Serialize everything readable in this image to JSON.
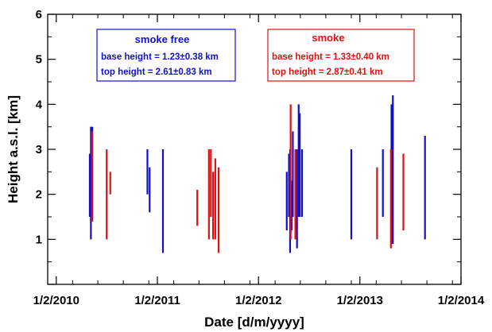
{
  "chart_data": {
    "type": "range-bar",
    "xlabel": "Date [d/m/yyyy]",
    "ylabel": "Height a.s.l. [km]",
    "xlim": [
      "2010-01-01",
      "2014-02-01"
    ],
    "ylim": [
      0,
      6
    ],
    "x_tick_labels": [
      "1/2/2010",
      "1/2/2011",
      "1/2/2012",
      "1/2/2013",
      "1/2/2014"
    ],
    "x_tick_dates": [
      "2010-02-01",
      "2011-02-01",
      "2012-02-01",
      "2013-02-01",
      "2014-02-01"
    ],
    "y_tick_labels": [
      "1",
      "2",
      "3",
      "4",
      "5",
      "6"
    ],
    "y_ticks": [
      1,
      2,
      3,
      4,
      5,
      6
    ],
    "colors": {
      "smoke_free": "#1010cc",
      "smoke": "#dd1111"
    },
    "annotations": [
      {
        "series": "smoke_free",
        "title": "smoke free",
        "lines": [
          "base height = 1.23±0.38 km",
          "top height = 2.61±0.83 km"
        ]
      },
      {
        "series": "smoke",
        "title": "smoke",
        "lines": [
          "base height = 1.33±0.40 km",
          "top height = 2.87±0.41 km"
        ]
      }
    ],
    "series": [
      {
        "key": "smoke_free",
        "points": [
          {
            "date": "2010-06-02",
            "base": 1.5,
            "top": 2.9
          },
          {
            "date": "2010-06-06",
            "base": 1.0,
            "top": 3.5
          },
          {
            "date": "2010-06-11",
            "base": 1.4,
            "top": 3.5
          },
          {
            "date": "2010-12-27",
            "base": 2.0,
            "top": 3.0
          },
          {
            "date": "2011-01-04",
            "base": 1.6,
            "top": 2.6
          },
          {
            "date": "2011-02-21",
            "base": 0.7,
            "top": 3.0
          },
          {
            "date": "2012-05-13",
            "base": 1.2,
            "top": 2.5
          },
          {
            "date": "2012-05-21",
            "base": 1.5,
            "top": 2.9
          },
          {
            "date": "2012-05-25",
            "base": 0.7,
            "top": 3.0
          },
          {
            "date": "2012-05-31",
            "base": 1.2,
            "top": 2.3
          },
          {
            "date": "2012-06-04",
            "base": 1.5,
            "top": 3.4
          },
          {
            "date": "2012-06-19",
            "base": 0.8,
            "top": 3.0
          },
          {
            "date": "2012-06-25",
            "base": 1.5,
            "top": 4.0
          },
          {
            "date": "2012-06-29",
            "base": 1.5,
            "top": 3.8
          },
          {
            "date": "2012-07-07",
            "base": 1.5,
            "top": 3.0
          },
          {
            "date": "2013-01-01",
            "base": 1.0,
            "top": 3.0
          },
          {
            "date": "2013-04-25",
            "base": 1.5,
            "top": 3.0
          },
          {
            "date": "2013-05-26",
            "base": 0.9,
            "top": 4.0
          },
          {
            "date": "2013-05-31",
            "base": 0.9,
            "top": 4.2
          },
          {
            "date": "2013-09-24",
            "base": 1.0,
            "top": 3.3
          }
        ]
      },
      {
        "key": "smoke",
        "points": [
          {
            "date": "2010-06-10",
            "base": 1.4,
            "top": 3.4
          },
          {
            "date": "2010-08-02",
            "base": 1.0,
            "top": 3.0
          },
          {
            "date": "2010-08-15",
            "base": 2.0,
            "top": 2.5
          },
          {
            "date": "2011-06-25",
            "base": 1.3,
            "top": 2.1
          },
          {
            "date": "2011-08-06",
            "base": 1.0,
            "top": 3.0
          },
          {
            "date": "2011-08-13",
            "base": 1.5,
            "top": 3.0
          },
          {
            "date": "2011-08-21",
            "base": 1.0,
            "top": 2.5
          },
          {
            "date": "2011-08-29",
            "base": 1.0,
            "top": 2.8
          },
          {
            "date": "2011-09-10",
            "base": 0.7,
            "top": 2.6
          },
          {
            "date": "2012-05-27",
            "base": 1.0,
            "top": 4.0
          },
          {
            "date": "2012-06-13",
            "base": 1.0,
            "top": 3.0
          },
          {
            "date": "2013-04-04",
            "base": 1.0,
            "top": 2.6
          },
          {
            "date": "2013-05-24",
            "base": 0.8,
            "top": 3.0
          },
          {
            "date": "2013-07-08",
            "base": 1.2,
            "top": 2.9
          }
        ]
      }
    ]
  }
}
